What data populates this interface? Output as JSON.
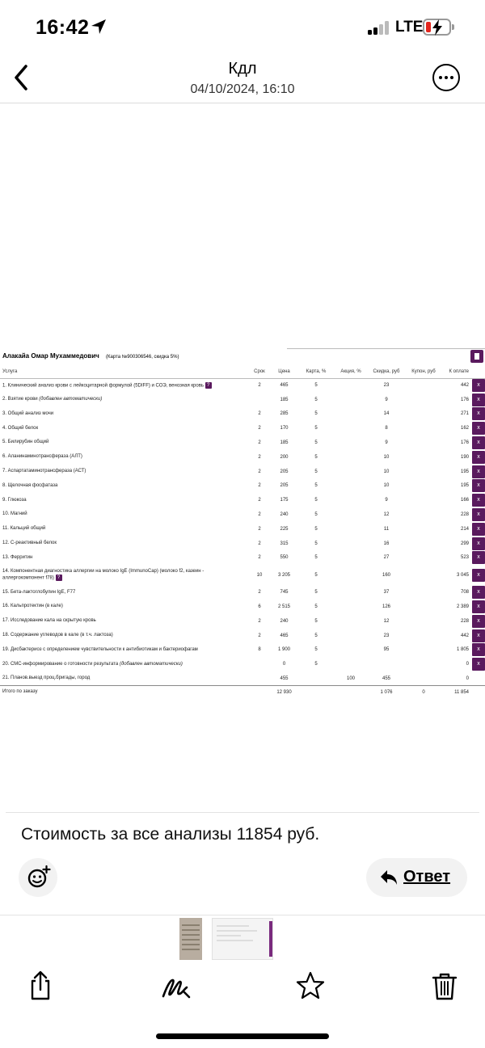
{
  "status": {
    "time": "16:42",
    "network": "LTE"
  },
  "nav": {
    "title": "Кдл",
    "subtitle": "04/10/2024, 16:10"
  },
  "embedded_table": {
    "patient_name": "Алакайа Омар Мухаммедович",
    "card_info": "(Карта №900306546, скидка 5%)",
    "columns": [
      "Услуга",
      "Срок",
      "Цена",
      "Карта, %",
      "Акция, %",
      "Скидка, руб",
      "Купон, руб",
      "К оплате"
    ],
    "rows": [
      {
        "name": "1. Клинический анализ крови с лейкоцитарной формулой (5DIFF) и СОЭ, венозная кровь",
        "term": "2",
        "price": "465",
        "card": "5",
        "promo": "",
        "discount": "23",
        "coupon": "",
        "pay": "442",
        "info": true,
        "remove": true
      },
      {
        "name": "2. Взятие крови",
        "note": "(добавлен автоматически)",
        "term": "",
        "price": "185",
        "card": "5",
        "promo": "",
        "discount": "9",
        "coupon": "",
        "pay": "176",
        "remove": true
      },
      {
        "name": "3. Общий анализ мочи",
        "term": "2",
        "price": "285",
        "card": "5",
        "promo": "",
        "discount": "14",
        "coupon": "",
        "pay": "271",
        "remove": true
      },
      {
        "name": "4. Общий белок",
        "term": "2",
        "price": "170",
        "card": "5",
        "promo": "",
        "discount": "8",
        "coupon": "",
        "pay": "162",
        "remove": true
      },
      {
        "name": "5. Билирубин общий",
        "term": "2",
        "price": "185",
        "card": "5",
        "promo": "",
        "discount": "9",
        "coupon": "",
        "pay": "176",
        "remove": true
      },
      {
        "name": "6. Аланинаминотрансфераза (АЛТ)",
        "term": "2",
        "price": "200",
        "card": "5",
        "promo": "",
        "discount": "10",
        "coupon": "",
        "pay": "190",
        "remove": true
      },
      {
        "name": "7. Аспартатаминотрансфераза (АСТ)",
        "term": "2",
        "price": "205",
        "card": "5",
        "promo": "",
        "discount": "10",
        "coupon": "",
        "pay": "195",
        "remove": true
      },
      {
        "name": "8. Щелочная фосфатаза",
        "term": "2",
        "price": "205",
        "card": "5",
        "promo": "",
        "discount": "10",
        "coupon": "",
        "pay": "195",
        "remove": true
      },
      {
        "name": "9. Глюкоза",
        "term": "2",
        "price": "175",
        "card": "5",
        "promo": "",
        "discount": "9",
        "coupon": "",
        "pay": "166",
        "remove": true
      },
      {
        "name": "10. Магний",
        "term": "2",
        "price": "240",
        "card": "5",
        "promo": "",
        "discount": "12",
        "coupon": "",
        "pay": "228",
        "remove": true
      },
      {
        "name": "11. Кальций общий",
        "term": "2",
        "price": "225",
        "card": "5",
        "promo": "",
        "discount": "11",
        "coupon": "",
        "pay": "214",
        "remove": true
      },
      {
        "name": "12. С-реактивный белок",
        "term": "2",
        "price": "315",
        "card": "5",
        "promo": "",
        "discount": "16",
        "coupon": "",
        "pay": "299",
        "remove": true
      },
      {
        "name": "13. Ферритин",
        "term": "2",
        "price": "550",
        "card": "5",
        "promo": "",
        "discount": "27",
        "coupon": "",
        "pay": "523",
        "remove": true
      },
      {
        "name": "14. Компонентная диагностика аллергии на молоко IgE (ImmunoCap) (молоко f2, казеин - аллергокомпонент f78)",
        "term": "10",
        "price": "3 205",
        "card": "5",
        "promo": "",
        "discount": "160",
        "coupon": "",
        "pay": "3 045",
        "info": true,
        "remove": true,
        "tall": true
      },
      {
        "name": "15. Бета-лактоглобулин IgE, F77",
        "term": "2",
        "price": "745",
        "card": "5",
        "promo": "",
        "discount": "37",
        "coupon": "",
        "pay": "708",
        "remove": true
      },
      {
        "name": "16. Кальпротектин (в кале)",
        "term": "6",
        "price": "2 515",
        "card": "5",
        "promo": "",
        "discount": "126",
        "coupon": "",
        "pay": "2 389",
        "remove": true
      },
      {
        "name": "17. Исследование кала на скрытую кровь",
        "term": "2",
        "price": "240",
        "card": "5",
        "promo": "",
        "discount": "12",
        "coupon": "",
        "pay": "228",
        "remove": true
      },
      {
        "name": "18. Содержание углеводов в кале (в т.ч. лактоза)",
        "term": "2",
        "price": "465",
        "card": "5",
        "promo": "",
        "discount": "23",
        "coupon": "",
        "pay": "442",
        "remove": true
      },
      {
        "name": "19. Дисбактериоз с определением чувствительности к антибиотикам и бактериофагам",
        "term": "8",
        "price": "1 900",
        "card": "5",
        "promo": "",
        "discount": "95",
        "coupon": "",
        "pay": "1 805",
        "remove": true
      },
      {
        "name": "20. СМС-информирование о готовности результата",
        "note": "(добавлен автоматически)",
        "term": "",
        "price": "0",
        "card": "5",
        "promo": "",
        "discount": "",
        "coupon": "",
        "pay": "0",
        "remove": true
      },
      {
        "name": "21. Планов.выезд проц.бригады, город",
        "term": "",
        "price": "455",
        "card": "",
        "promo": "100",
        "discount": "455",
        "coupon": "",
        "pay": "0",
        "remove": false
      }
    ],
    "total": {
      "label": "Итого по заказу",
      "price": "12 930",
      "discount": "1 076",
      "coupon": "0",
      "pay": "11 854"
    },
    "remove_label": "x",
    "info_label": "?"
  },
  "message": {
    "text": "Стоимость за все анализы 11854 руб."
  },
  "reply": {
    "label": "Ответ"
  }
}
